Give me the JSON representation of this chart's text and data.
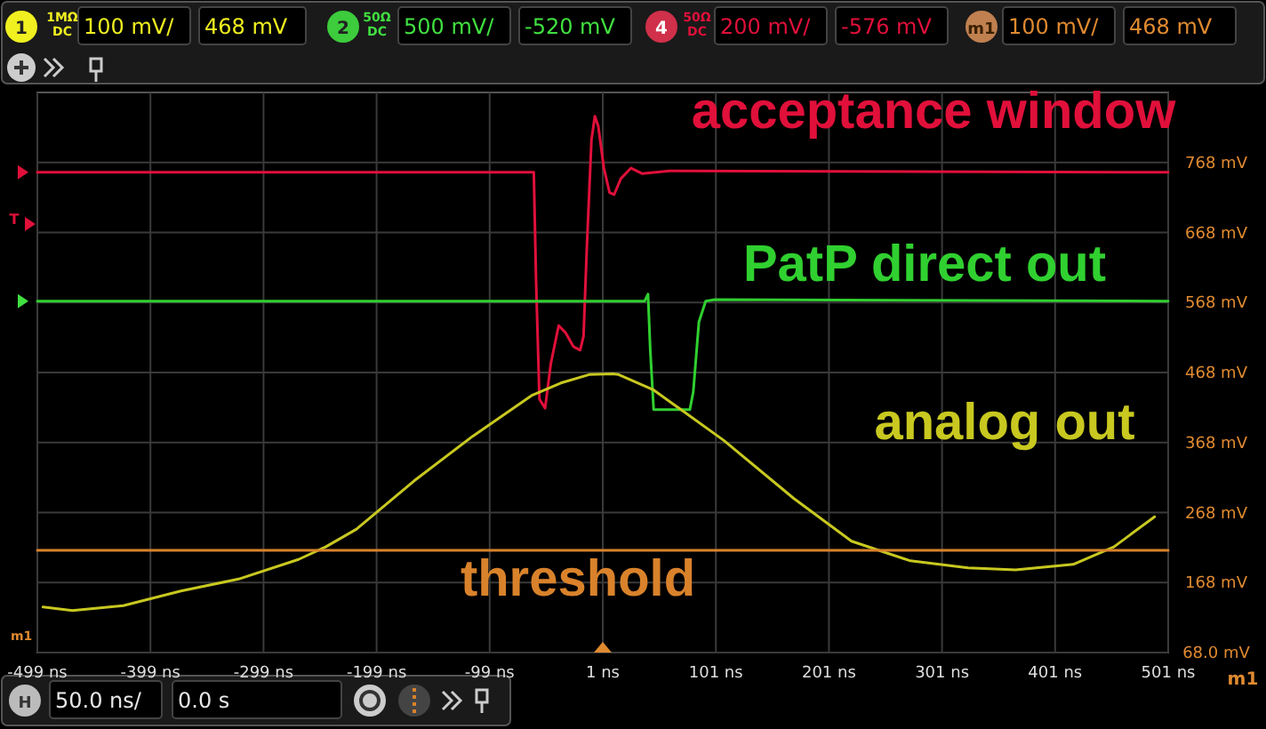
{
  "chart_data": {
    "type": "line",
    "xlim": [
      -499,
      501
    ],
    "ylim": [
      68,
      868
    ],
    "xticks": [
      {
        "value": -499,
        "label": "-499 ns"
      },
      {
        "value": -399,
        "label": "-399 ns"
      },
      {
        "value": -299,
        "label": "-299 ns"
      },
      {
        "value": -199,
        "label": "-199 ns"
      },
      {
        "value": -99,
        "label": "-99 ns"
      },
      {
        "value": 1,
        "label": "1 ns"
      },
      {
        "value": 101,
        "label": "101 ns"
      },
      {
        "value": 201,
        "label": "201 ns"
      },
      {
        "value": 301,
        "label": "301 ns"
      },
      {
        "value": 401,
        "label": "401 ns"
      },
      {
        "value": 501,
        "label": "501 ns"
      }
    ],
    "yticks": [
      {
        "value": 68,
        "label": "68.0 mV"
      },
      {
        "value": 168,
        "label": "168 mV"
      },
      {
        "value": 268,
        "label": "268 mV"
      },
      {
        "value": 368,
        "label": "368 mV"
      },
      {
        "value": 468,
        "label": "468 mV"
      },
      {
        "value": 568,
        "label": "568 mV"
      },
      {
        "value": 668,
        "label": "668 mV"
      },
      {
        "value": 768,
        "label": "768 mV"
      }
    ],
    "grid": true,
    "marker": "none",
    "line_style": "solid",
    "series": [
      {
        "name": "acceptance window",
        "color": "#e0103a",
        "x": [
          -499,
          -60,
          -58,
          -55,
          -50,
          -45,
          -38,
          -32,
          -25,
          -19,
          -16,
          -13,
          -9,
          -6,
          -3,
          2,
          7,
          11,
          17,
          26,
          36,
          60,
          501
        ],
        "values": [
          754,
          754,
          600,
          430,
          417,
          480,
          535,
          525,
          505,
          500,
          520,
          650,
          800,
          834,
          820,
          760,
          725,
          722,
          745,
          760,
          752,
          756,
          754
        ]
      },
      {
        "name": "PatP direct out",
        "color": "#30d030",
        "x": [
          -499,
          38,
          41,
          43,
          46,
          78,
          81,
          86,
          92,
          100,
          501
        ],
        "values": [
          570,
          570,
          580,
          500,
          415,
          415,
          440,
          540,
          570,
          572,
          570
        ]
      },
      {
        "name": "analog out",
        "color": "#c8c820",
        "x": [
          -494,
          -468,
          -423,
          -372,
          -321,
          -268,
          -244,
          -217,
          -166,
          -114,
          -62,
          -36,
          -11,
          10,
          15,
          46,
          108,
          170,
          221,
          273,
          324,
          366,
          417,
          453,
          489
        ],
        "values": [
          133,
          128,
          135,
          156,
          173,
          201,
          219,
          244,
          313,
          377,
          435,
          453,
          465,
          466,
          465,
          443,
          371,
          288,
          227,
          199,
          189,
          186,
          194,
          219,
          262
        ]
      },
      {
        "name": "threshold",
        "color": "#d9822b",
        "x": [
          -499,
          501
        ],
        "values": [
          214,
          214
        ]
      }
    ],
    "annotations": [
      "1",
      "1MΩ",
      "DC",
      "100 mV/",
      "468 mV",
      "2",
      "50Ω",
      "DC",
      "500 mV/",
      "-520 mV",
      "4",
      "50Ω",
      "DC",
      "200 mV/",
      "-576 mV",
      "m1",
      "100 mV/",
      "468 mV",
      "T",
      "m1",
      "m1",
      "H",
      "50.0 ns/",
      "0.0 s"
    ]
  }
}
